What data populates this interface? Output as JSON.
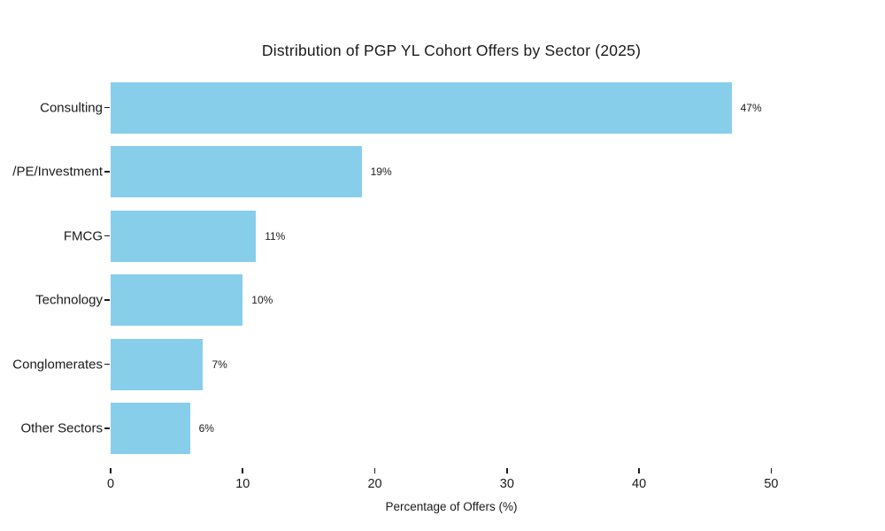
{
  "chart_data": {
    "type": "bar",
    "orientation": "horizontal",
    "title": "Distribution of PGP YL Cohort Offers by Sector (2025)",
    "xlabel": "Percentage of Offers (%)",
    "ylabel": "",
    "categories": [
      "Consulting",
      "/PE/Investment",
      "FMCG",
      "Technology",
      "Conglomerates",
      "Other Sectors"
    ],
    "values": [
      47,
      19,
      11,
      10,
      7,
      6
    ],
    "value_labels": [
      "47%",
      "19%",
      "11%",
      "10%",
      "7%",
      "6%"
    ],
    "xticks": [
      0,
      10,
      20,
      30,
      40,
      50
    ],
    "xlim": [
      0,
      50
    ],
    "grid": false,
    "legend": "none",
    "bar_color": "#87CEEB",
    "text_color": "#1a1a1a",
    "background_color": "#ffffff"
  }
}
